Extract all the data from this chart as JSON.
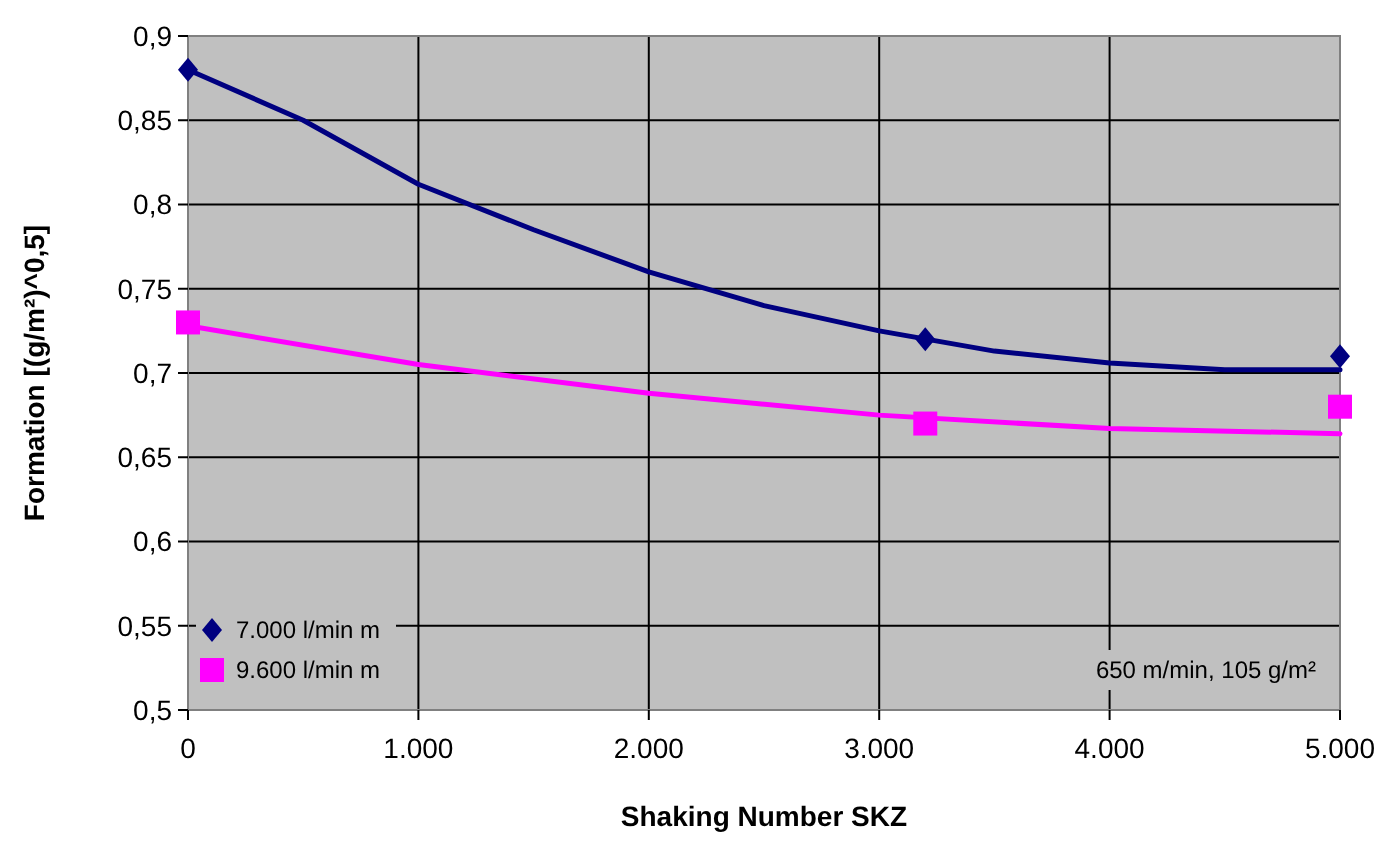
{
  "chart_data": {
    "type": "scatter",
    "xlabel": "Shaking Number SKZ",
    "ylabel": "Formation [(g/m²)^0,5]",
    "xlim": [
      0,
      5000
    ],
    "xticks": [
      0,
      {
        "value": 1000,
        "label": "1.000"
      },
      {
        "value": 2000,
        "label": "2.000"
      },
      {
        "value": 3000,
        "label": "3.000"
      },
      {
        "value": 4000,
        "label": "4.000"
      },
      {
        "value": 5000,
        "label": "5.000"
      }
    ],
    "ylim": [
      0.5,
      0.9
    ],
    "yticks": [
      {
        "value": 0.5,
        "label": "0,5"
      },
      {
        "value": 0.55,
        "label": "0,55"
      },
      {
        "value": 0.6,
        "label": "0,6"
      },
      {
        "value": 0.65,
        "label": "0,65"
      },
      {
        "value": 0.7,
        "label": "0,7"
      },
      {
        "value": 0.75,
        "label": "0,75"
      },
      {
        "value": 0.8,
        "label": "0,8"
      },
      {
        "value": 0.85,
        "label": "0,85"
      },
      {
        "value": 0.9,
        "label": "0,9"
      }
    ],
    "grid": true,
    "legend": "bottom left",
    "annotations": [
      "650 m/min, 105 g/m²"
    ],
    "series": [
      {
        "name": "7.000 l/min m",
        "marker": "diamond",
        "color": "#000080",
        "x": [
          0,
          3200,
          5000
        ],
        "values": [
          0.88,
          0.72,
          0.71
        ]
      },
      {
        "name": "9.600 l/min m",
        "marker": "square",
        "color": "#ff00ff",
        "x": [
          0,
          3200,
          5000
        ],
        "values": [
          0.73,
          0.67,
          0.68
        ]
      },
      {
        "type": "line",
        "color": "#000080",
        "x": [
          0,
          500,
          1000,
          1500,
          2000,
          2500,
          3000,
          3500,
          4000,
          4500,
          5000
        ],
        "values": [
          0.88,
          0.85,
          0.812,
          0.785,
          0.76,
          0.74,
          0.725,
          0.713,
          0.706,
          0.702,
          0.702
        ]
      },
      {
        "type": "line",
        "color": "#ff00ff",
        "x": [
          0,
          1000,
          2000,
          3000,
          4000,
          5000
        ],
        "values": [
          0.728,
          0.705,
          0.688,
          0.675,
          0.667,
          0.664
        ]
      }
    ]
  }
}
